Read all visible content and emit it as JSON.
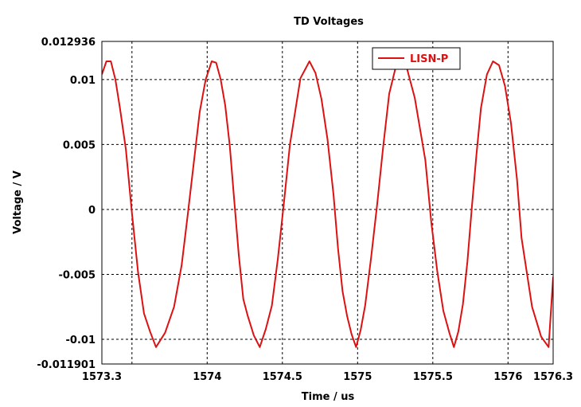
{
  "chart_data": {
    "type": "line",
    "title": "TD Voltages",
    "xlabel": "Time / us",
    "ylabel": "Voltage / V",
    "xlim": [
      1573.3,
      1576.3
    ],
    "ylim": [
      -0.011901,
      0.012936
    ],
    "x_ticks": [
      1573.3,
      1574,
      1574.5,
      1575,
      1575.5,
      1576,
      1576.3
    ],
    "x_tick_labels": [
      "1573.3",
      "1574",
      "1574.5",
      "1575",
      "1575.5",
      "1576",
      "1576.3"
    ],
    "y_ticks": [
      -0.011901,
      -0.01,
      -0.005,
      0,
      0.005,
      0.01,
      0.012936
    ],
    "y_tick_labels": [
      "-0.011901",
      "-0.01",
      "-0.005",
      "0",
      "0.005",
      "0.01",
      "0.012936"
    ],
    "x_grid": [
      1573.3,
      1573.5,
      1574,
      1574.5,
      1575,
      1575.5,
      1576,
      1576.3
    ],
    "y_grid": [
      -0.01,
      -0.005,
      0,
      0.005,
      0.01
    ],
    "grid": true,
    "legend_position": "top-right",
    "series": [
      {
        "name": "LISN-P",
        "color": "#dd1111",
        "x": [
          1573.3,
          1573.33,
          1573.36,
          1573.39,
          1573.42,
          1573.46,
          1573.5,
          1573.54,
          1573.58,
          1573.62,
          1573.66,
          1573.72,
          1573.78,
          1573.83,
          1573.87,
          1573.91,
          1573.95,
          1573.99,
          1574.03,
          1574.06,
          1574.09,
          1574.12,
          1574.15,
          1574.18,
          1574.21,
          1574.24,
          1574.27,
          1574.31,
          1574.35,
          1574.39,
          1574.43,
          1574.47,
          1574.51,
          1574.55,
          1574.62,
          1574.68,
          1574.72,
          1574.76,
          1574.8,
          1574.84,
          1574.87,
          1574.9,
          1574.93,
          1574.96,
          1574.99,
          1575.02,
          1575.05,
          1575.09,
          1575.13,
          1575.17,
          1575.21,
          1575.25,
          1575.29,
          1575.32,
          1575.38,
          1575.45,
          1575.49,
          1575.53,
          1575.57,
          1575.61,
          1575.64,
          1575.67,
          1575.7,
          1575.73,
          1575.76,
          1575.79,
          1575.82,
          1575.86,
          1575.9,
          1575.94,
          1575.98,
          1576.02,
          1576.06,
          1576.09,
          1576.16,
          1576.22,
          1576.27,
          1576.3
        ],
        "y": [
          0.0104,
          0.0114,
          0.0114,
          0.01,
          0.0078,
          0.0046,
          -0.0003,
          -0.0048,
          -0.008,
          -0.0094,
          -0.0106,
          -0.0095,
          -0.0075,
          -0.0043,
          -0.0005,
          0.0035,
          0.0075,
          0.01,
          0.0114,
          0.0113,
          0.01,
          0.008,
          0.0049,
          0.0007,
          -0.0035,
          -0.0069,
          -0.0082,
          -0.0097,
          -0.0106,
          -0.0092,
          -0.0074,
          -0.0038,
          0.0005,
          0.005,
          0.0101,
          0.0114,
          0.0105,
          0.0085,
          0.0054,
          0.0011,
          -0.003,
          -0.0063,
          -0.0082,
          -0.0096,
          -0.0106,
          -0.0093,
          -0.0074,
          -0.0037,
          0.0004,
          0.0048,
          0.0089,
          0.0108,
          0.0114,
          0.0112,
          0.0086,
          0.0038,
          -0.001,
          -0.0048,
          -0.0078,
          -0.0095,
          -0.0106,
          -0.0094,
          -0.0073,
          -0.004,
          0.0002,
          0.0042,
          0.0078,
          0.0104,
          0.0114,
          0.0111,
          0.0095,
          0.0066,
          0.0023,
          -0.0022,
          -0.0075,
          -0.0098,
          -0.0106,
          -0.0052
        ]
      }
    ]
  }
}
